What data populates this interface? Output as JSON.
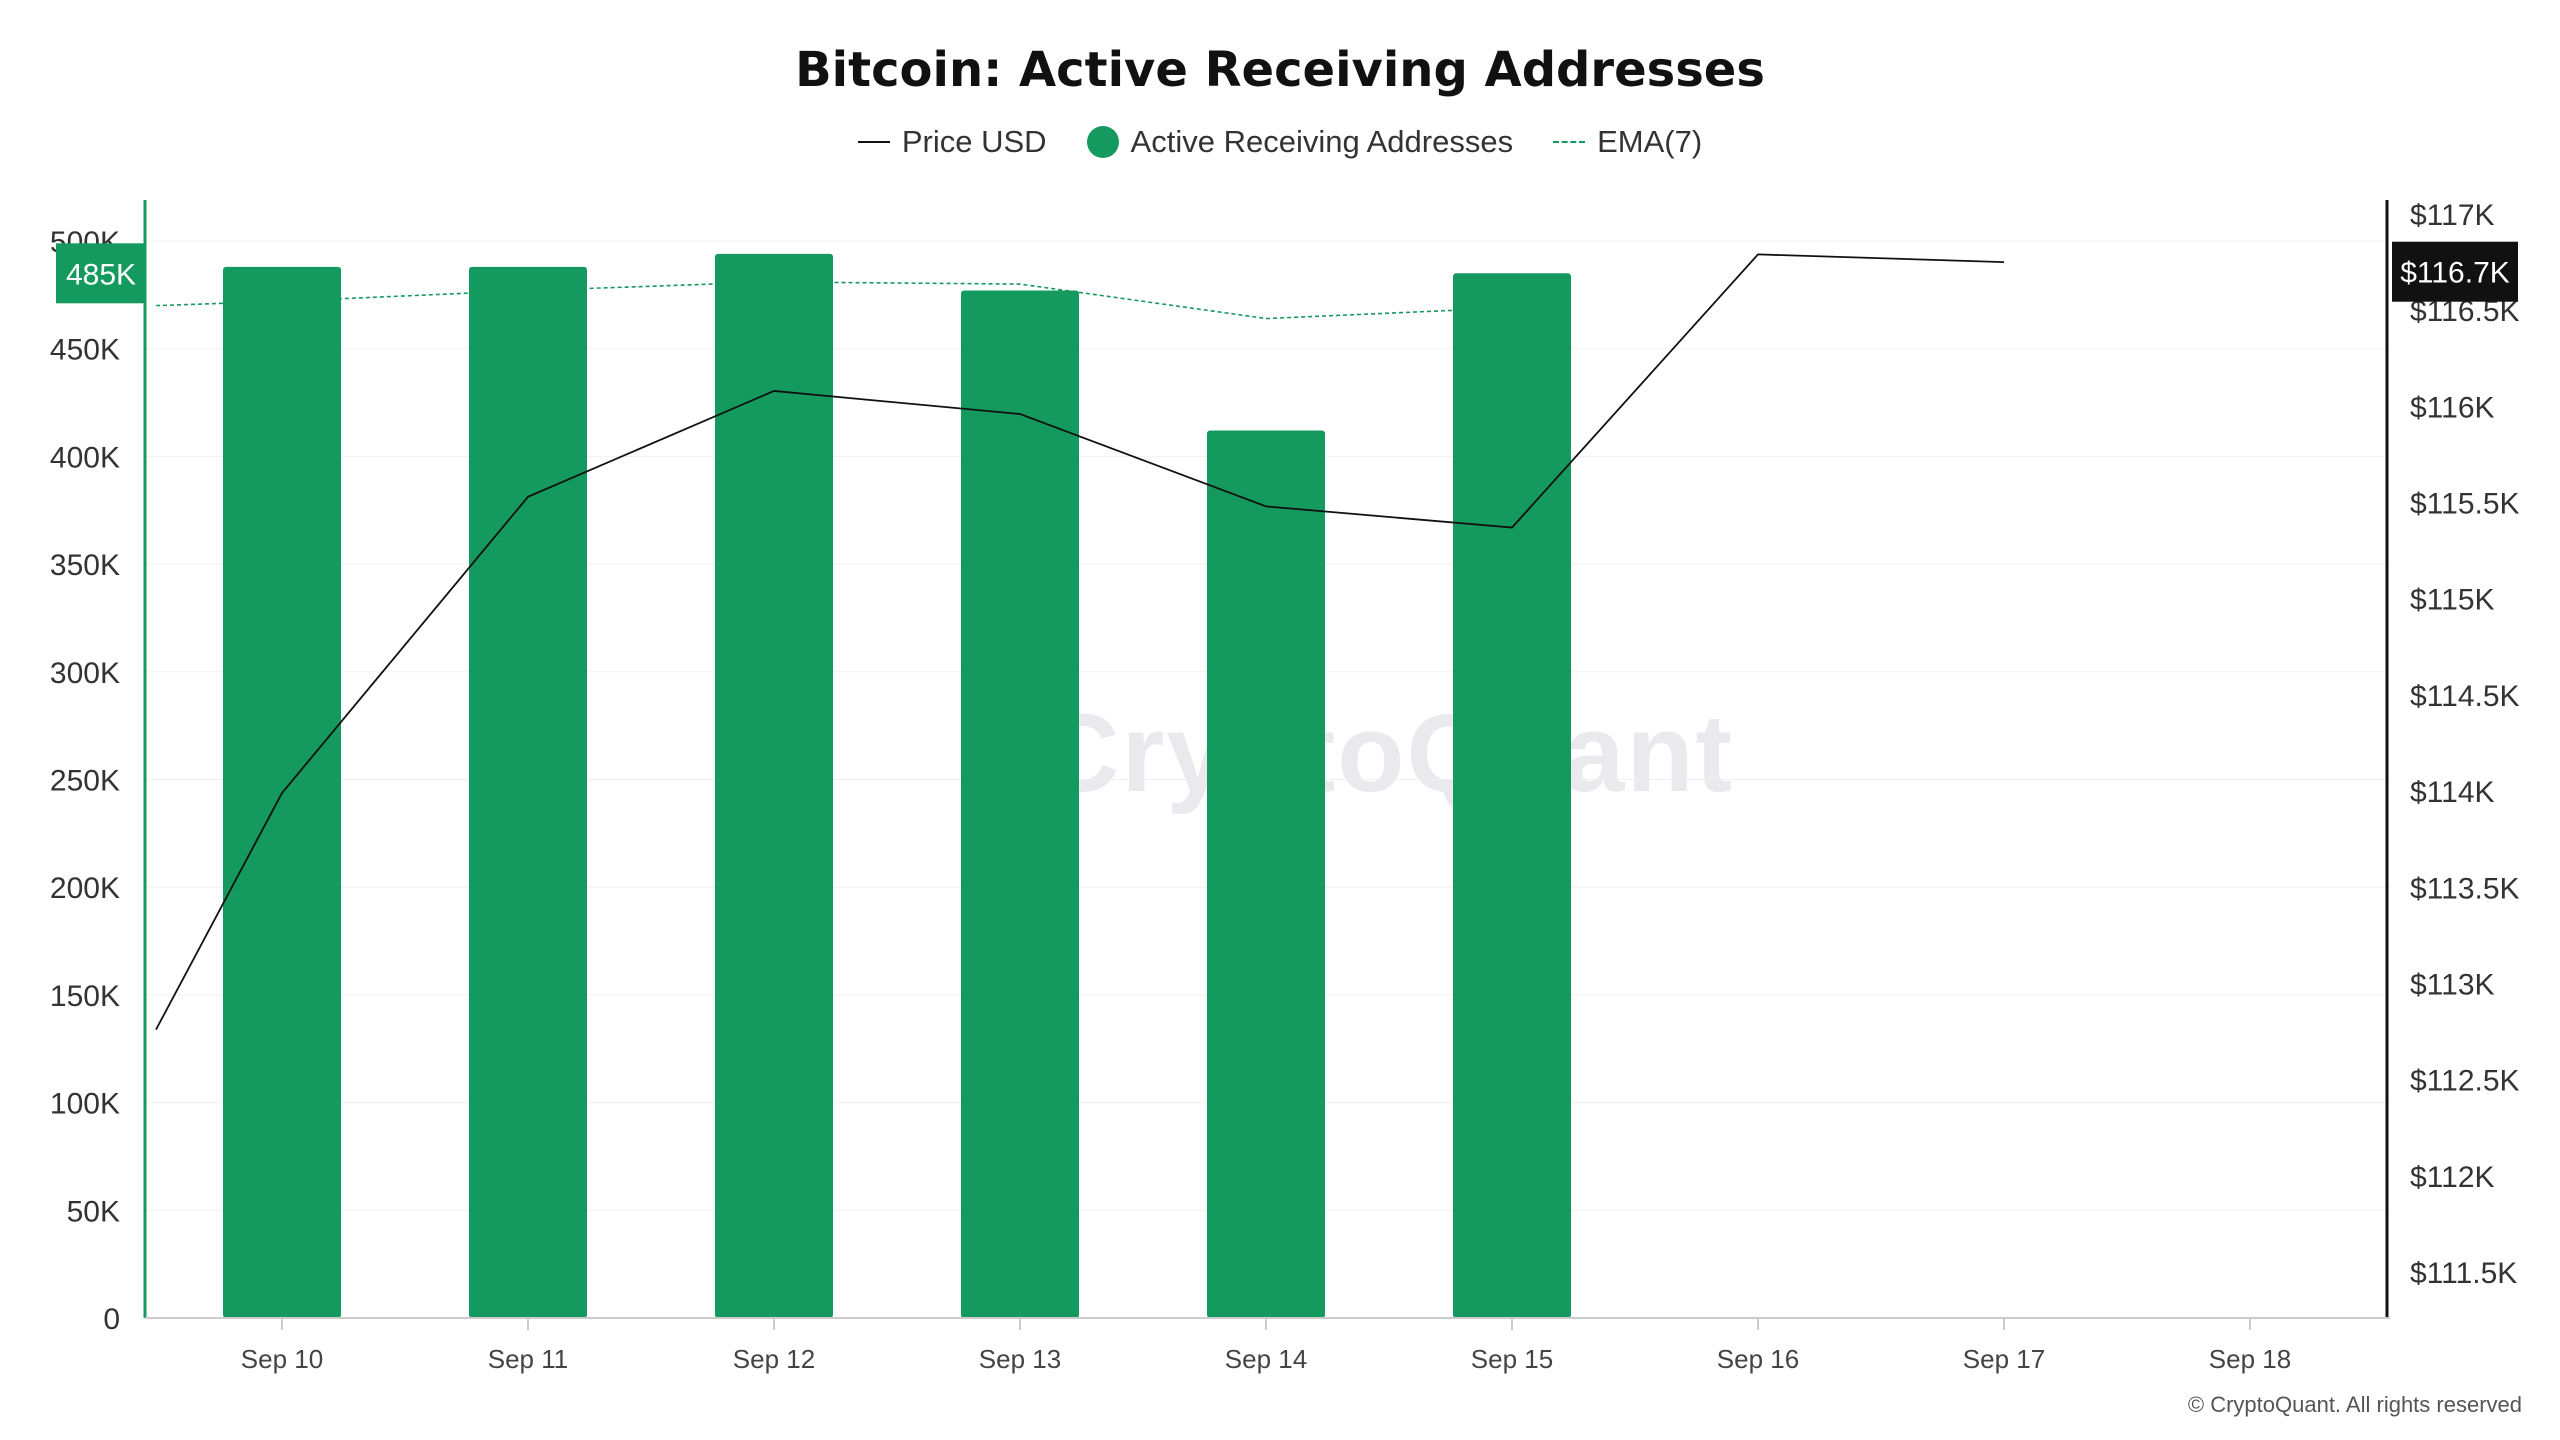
{
  "chart_data": {
    "type": "bar",
    "title": "Bitcoin: Active Receiving Addresses",
    "categories": [
      "Sep 10",
      "Sep 11",
      "Sep 12",
      "Sep 13",
      "Sep 14",
      "Sep 15",
      "Sep 16",
      "Sep 17",
      "Sep 18"
    ],
    "series": [
      {
        "name": "Active Receiving Addresses",
        "kind": "bar",
        "axis": "left",
        "color": "#149a5e",
        "values": [
          488000,
          488000,
          494000,
          477000,
          412000,
          485000,
          null,
          null,
          null
        ]
      },
      {
        "name": "EMA(7)",
        "kind": "dashed-line",
        "axis": "left",
        "color": "#149a5e",
        "values": [
          472000,
          477000,
          481000,
          480000,
          464000,
          469000,
          null,
          null,
          null
        ],
        "start_value": 470000
      },
      {
        "name": "Price USD",
        "kind": "line",
        "axis": "right",
        "color": "#111111",
        "values": [
          113990,
          115530,
          116080,
          115960,
          115480,
          115370,
          116790,
          116750,
          null
        ],
        "start_value": 112760
      }
    ],
    "y_left": {
      "ticks": [
        "0",
        "50K",
        "100K",
        "150K",
        "200K",
        "250K",
        "300K",
        "350K",
        "400K",
        "450K",
        "500K"
      ],
      "ylim": [
        0,
        500000
      ]
    },
    "y_right": {
      "ticks": [
        "$111.5K",
        "$112K",
        "$112.5K",
        "$113K",
        "$113.5K",
        "$114K",
        "$114.5K",
        "$115K",
        "$115.5K",
        "$116K",
        "$116.5K",
        "$117K"
      ],
      "ylim": [
        111250,
        117000
      ]
    },
    "left_marker": "485K",
    "right_marker": "$116.7K",
    "grid": "horizontal",
    "legend_position": "top-center"
  },
  "legend": {
    "price": "Price USD",
    "addresses": "Active Receiving Addresses",
    "ema": "EMA(7)"
  },
  "watermark": "CryptoQuant",
  "copyright": "© CryptoQuant. All rights reserved",
  "colors": {
    "bar": "#149a5e",
    "price": "#111111",
    "ema": "#149a5e"
  }
}
